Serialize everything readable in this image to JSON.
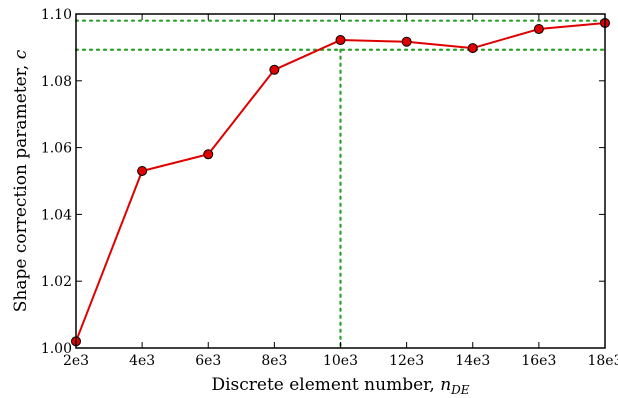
{
  "chart_data": {
    "type": "line",
    "xlabel_text": "Discrete element number, ",
    "xlabel_var": "n",
    "xlabel_sub": "DE",
    "ylabel_text": "Shape correction parameter, ",
    "ylabel_var": "c",
    "x": [
      2000,
      4000,
      6000,
      8000,
      10000,
      12000,
      14000,
      16000,
      18000
    ],
    "y": [
      1.002,
      1.053,
      1.058,
      1.0833,
      1.0922,
      1.0917,
      1.0898,
      1.0955,
      1.0973
    ],
    "xlim": [
      2000,
      18000
    ],
    "ylim": [
      1.0,
      1.1
    ],
    "x_ticks": [
      2000,
      4000,
      6000,
      8000,
      10000,
      12000,
      14000,
      16000,
      18000
    ],
    "x_tick_labels": [
      "2e3",
      "4e3",
      "6e3",
      "8e3",
      "10e3",
      "12e3",
      "14e3",
      "16e3",
      "18e3"
    ],
    "y_ticks": [
      1.0,
      1.02,
      1.04,
      1.06,
      1.08,
      1.1
    ],
    "y_tick_labels": [
      "1.00",
      "1.02",
      "1.04",
      "1.06",
      "1.08",
      "1.10"
    ],
    "reference_lines": {
      "horizontal": [
        1.098,
        1.0893
      ],
      "vertical": [
        10000
      ],
      "style": "dotted"
    },
    "grid": false,
    "legend": "none",
    "colors": {
      "line": "#e00000",
      "marker_fill": "#e00000",
      "marker_edge": "#000000",
      "reference": "#2ca02c",
      "axes": "#000000"
    }
  }
}
